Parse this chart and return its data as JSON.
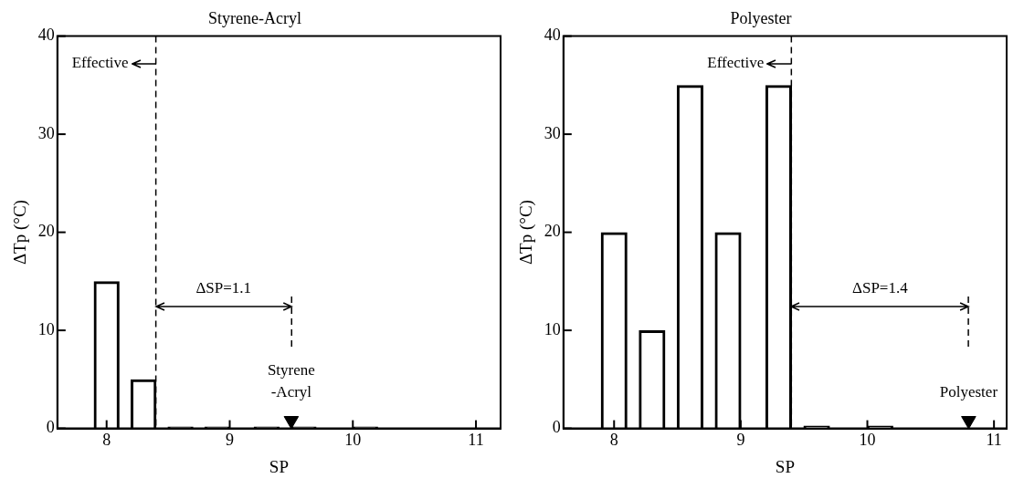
{
  "chart_data": [
    {
      "type": "bar",
      "title": "Styrene-Acryl",
      "xlabel": "SP",
      "ylabel": "ΔTp (°C)",
      "xlim": [
        7.6,
        11.2
      ],
      "xticks": [
        8,
        9,
        10,
        11
      ],
      "ylim": [
        0,
        40
      ],
      "yticks": [
        0,
        10,
        20,
        30,
        40
      ],
      "grid": false,
      "series": [
        {
          "color": "#000000",
          "x": [
            8.0,
            8.3,
            8.6,
            8.9,
            9.3,
            9.6,
            10.1
          ],
          "values": [
            15,
            5,
            0.2,
            0.2,
            0.2,
            0.2,
            0.2
          ]
        },
        {
          "type": "scatter",
          "marker": "triangle",
          "color": "#000000",
          "x": [
            9.5
          ],
          "values": [
            0.8
          ]
        }
      ],
      "ref_lines": [
        {
          "axis": "x",
          "value": 8.4,
          "line_style": "dashed"
        }
      ],
      "annotations": [
        "Effective",
        "ΔSP=1.1",
        "Styrene\n-Acryl"
      ]
    },
    {
      "type": "bar",
      "title": "Polyester",
      "xlabel": "SP",
      "ylabel": "ΔTp (°C)",
      "xlim": [
        7.6,
        11.1
      ],
      "xticks": [
        8,
        9,
        10,
        11
      ],
      "ylim": [
        0,
        40
      ],
      "yticks": [
        0,
        10,
        20,
        30,
        40
      ],
      "grid": false,
      "series": [
        {
          "color": "#000000",
          "x": [
            8.0,
            8.3,
            8.6,
            8.9,
            9.3,
            9.6,
            10.1
          ],
          "values": [
            20,
            10,
            35,
            20,
            35,
            0.3,
            0.3
          ]
        },
        {
          "type": "scatter",
          "marker": "triangle",
          "color": "#000000",
          "x": [
            10.8
          ],
          "values": [
            0.8
          ]
        }
      ],
      "ref_lines": [
        {
          "axis": "x",
          "value": 9.4,
          "line_style": "dashed"
        }
      ],
      "annotations": [
        "Effective",
        "ΔSP=1.4",
        "Polyester"
      ]
    }
  ]
}
